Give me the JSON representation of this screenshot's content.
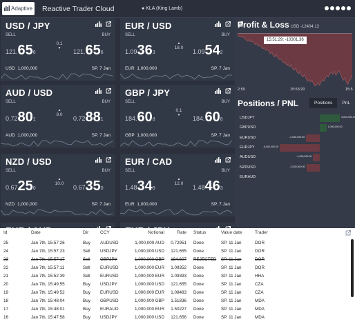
{
  "header": {
    "logo_text": "Adaptive",
    "app_title": "Reactive Trader Cloud",
    "user": "KLA (King Lamb)"
  },
  "tiles": [
    {
      "pair": "USD / JPY",
      "sell_label": "SELL",
      "buy_label": "BUY",
      "sell_small": "121.",
      "sell_big": "65",
      "sell_pip": "6",
      "spread": "0.1",
      "buy_small": "121.",
      "buy_big": "65",
      "buy_pip": "6",
      "ccy": "USD",
      "notional": "1,000,000",
      "date": "SP. 7 Jan",
      "spread_dir": "down"
    },
    {
      "pair": "EUR / USD",
      "sell_label": "SELL",
      "buy_label": "BUY",
      "sell_small": "1.09",
      "sell_big": "36",
      "sell_pip": "3",
      "spread": "18.0",
      "buy_small": "1.09",
      "buy_big": "54",
      "buy_pip": "2",
      "ccy": "EUR",
      "notional": "1,000,000",
      "date": "SP. 7 Jan",
      "spread_dir": "up"
    },
    {
      "pair": "AUD / USD",
      "sell_label": "SELL",
      "buy_label": "BUY",
      "sell_small": "0.72",
      "sell_big": "80",
      "sell_pip": "1",
      "spread": "8.0",
      "buy_small": "0.72",
      "buy_big": "88",
      "buy_pip": "1",
      "ccy": "AUD",
      "notional": "1,000,000",
      "date": "SP. 7 Jan",
      "spread_dir": "up"
    },
    {
      "pair": "GBP / JPY",
      "sell_label": "SELL",
      "buy_label": "BUY",
      "sell_small": "184.",
      "sell_big": "60",
      "sell_pip": "8",
      "spread": "0.1",
      "buy_small": "184.",
      "buy_big": "60",
      "buy_pip": "8",
      "ccy": "GBP",
      "notional": "1,000,000",
      "date": "SP. 7 Jan",
      "spread_dir": "down"
    },
    {
      "pair": "NZD / USD",
      "sell_label": "SELL",
      "buy_label": "BUY",
      "sell_small": "0.67",
      "sell_big": "25",
      "sell_pip": "0",
      "spread": "10.0",
      "buy_small": "0.67",
      "buy_big": "35",
      "buy_pip": "0",
      "ccy": "NZD",
      "notional": "1,000,000",
      "date": "SP. 7 Jan",
      "spread_dir": "up"
    },
    {
      "pair": "EUR / CAD",
      "sell_label": "SELL",
      "buy_label": "BUY",
      "sell_small": "1.48",
      "sell_big": "34",
      "sell_pip": "3",
      "spread": "12.0",
      "buy_small": "1.48",
      "buy_big": "46",
      "buy_pip": "3",
      "ccy": "EUR",
      "notional": "1,000,000",
      "date": "SP. 7 Jan",
      "spread_dir": "up"
    },
    {
      "pair": "EUR / AUD",
      "sell_label": "",
      "buy_label": "",
      "sell_small": "",
      "sell_big": "",
      "sell_pip": "",
      "spread": "",
      "buy_small": "",
      "buy_big": "",
      "buy_pip": "",
      "ccy": "",
      "notional": "",
      "date": "",
      "spread_dir": ""
    },
    {
      "pair": "EUR / JPY",
      "sell_label": "",
      "buy_label": "",
      "sell_small": "",
      "sell_big": "",
      "sell_pip": "",
      "spread": "",
      "buy_small": "",
      "buy_big": "",
      "buy_pip": "",
      "ccy": "",
      "notional": "",
      "date": "",
      "spread_dir": ""
    }
  ],
  "pnl": {
    "title": "Profit & Loss",
    "total": "USD -12404.12",
    "tooltip": "15:51:29: -10301.36",
    "axis_start": "2:59",
    "axis_mid": "15:53:20",
    "axis_end": "15:5",
    "chart_data": {
      "type": "area",
      "values": [
        -2,
        -3,
        -3,
        -4,
        -4,
        -6,
        -8,
        -9,
        -7,
        -10,
        -9,
        -11,
        -13,
        -12,
        -15,
        -14,
        -16,
        -18,
        -17,
        -20,
        -19,
        -21,
        -24,
        -22,
        -26,
        -28,
        -25,
        -29,
        -31,
        -30,
        -33,
        -35,
        -34,
        -38,
        -36,
        -40,
        -37,
        -42,
        -44,
        -41,
        -46,
        -48,
        -45,
        -50,
        -52,
        -49,
        -54,
        -57,
        -55,
        -58,
        -56,
        -60,
        -63,
        -61,
        -59,
        -62,
        -58,
        -55,
        -57,
        -53,
        -50,
        -52,
        -48,
        -46,
        -49,
        -45,
        -50,
        -47,
        -44,
        -48,
        -52,
        -56,
        -53,
        -58,
        -61,
        -57,
        -54,
        -50
      ]
    }
  },
  "positions": {
    "title": "Positions / PNL",
    "tab_positions": "Positions",
    "tab_pnl": "PnL",
    "rows": [
      {
        "ccy": "USDJPY",
        "label": "3,000,000.00",
        "value": 3000000
      },
      {
        "ccy": "GBPUSD",
        "label": "1,000,000.00",
        "value": 1000000
      },
      {
        "ccy": "EURUSD",
        "label": "-2,040,000.00",
        "value": -2040000
      },
      {
        "ccy": "EURJPY",
        "label": "-6,000,000.00",
        "value": -6000000
      },
      {
        "ccy": "AUDUSD",
        "label": "-1,000,000.00",
        "value": -1000000
      },
      {
        "ccy": "NZDUSD",
        "label": "-2,000,000.00",
        "value": -2000000
      },
      {
        "ccy": "EURAUD",
        "label": "",
        "value": 0
      }
    ]
  },
  "blotter": {
    "headers": [
      "Id",
      "Date",
      "Dir",
      "CCY",
      "Notional",
      "Rate",
      "Status",
      "Value date",
      "Trader"
    ],
    "rows": [
      [
        "25",
        "Jan 7th, 15:57:26",
        "Buy",
        "AUDUSD",
        "1,000,000 AUD",
        "0.72951",
        "Done",
        "SP. 11 Jan",
        "DOR"
      ],
      [
        "24",
        "Jan 7th, 15:57:23",
        "Sell",
        "USDJPY",
        "1,000,000 USD",
        "121.655",
        "Done",
        "SP. 11 Jan",
        "DOR"
      ],
      [
        "23",
        "Jan 7th, 15:57:17",
        "Sell",
        "GBPJPY",
        "1,000,000 GBP",
        "184.607",
        "REJECTED",
        "SP. 11 Jan",
        "DOR"
      ],
      [
        "22",
        "Jan 7th, 15:57:11",
        "Sell",
        "EURUSD",
        "1,000,000 EUR",
        "1.09352",
        "Done",
        "SP. 11 Jan",
        "DOR"
      ],
      [
        "21",
        "Jan 7th, 15:52:39",
        "Sell",
        "EURUSD",
        "1,000,000 EUR",
        "1.09393",
        "Done",
        "SP. 11 Jan",
        "HHA"
      ],
      [
        "20",
        "Jan 7th, 15:49:55",
        "Buy",
        "USDJPY",
        "1,000,000 USD",
        "121.655",
        "Done",
        "SP. 11 Jan",
        "CZA"
      ],
      [
        "19",
        "Jan 7th, 15:49:52",
        "Buy",
        "EURUSD",
        "1,000,000 EUR",
        "1.09483",
        "Done",
        "SP. 11 Jan",
        "CZA"
      ],
      [
        "18",
        "Jan 7th, 15:48:04",
        "Buy",
        "GBPUSD",
        "1,000,000 GBP",
        "1.51836",
        "Done",
        "SP. 11 Jan",
        "MDA"
      ],
      [
        "17",
        "Jan 7th, 15:48:01",
        "Buy",
        "EURAUD",
        "1,000,000 EUR",
        "1.50227",
        "Done",
        "SP. 11 Jan",
        "MDA"
      ],
      [
        "16",
        "Jan 7th, 15:47:58",
        "Buy",
        "USDJPY",
        "1,000,000 USD",
        "121.656",
        "Done",
        "SP. 11 Jan",
        "MDA"
      ]
    ]
  }
}
